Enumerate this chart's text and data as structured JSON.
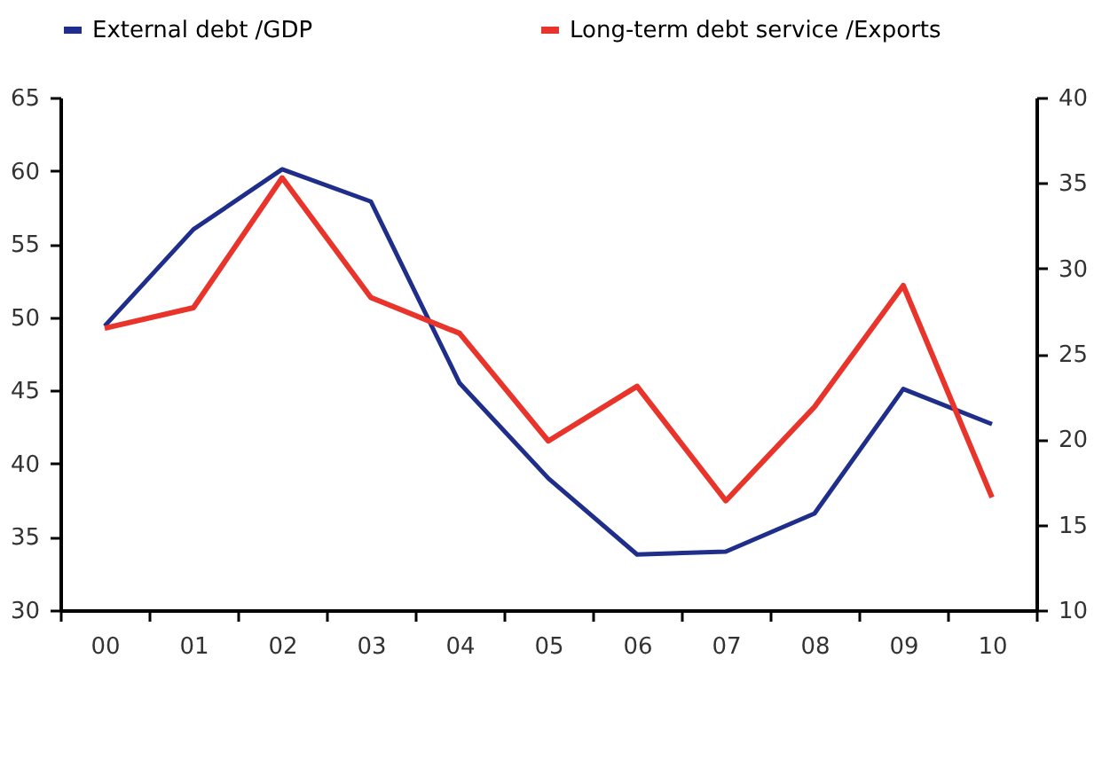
{
  "chart_data": {
    "type": "line",
    "categories": [
      "00",
      "01",
      "02",
      "03",
      "04",
      "05",
      "06",
      "07",
      "08",
      "09",
      "10"
    ],
    "series": [
      {
        "name": "External debt /GDP",
        "color": "#1f2e8a",
        "values": [
          49.4,
          56.0,
          60.1,
          57.9,
          45.5,
          39.0,
          33.8,
          34.0,
          36.6,
          45.1,
          42.7
        ]
      },
      {
        "name": "Long-term debt service /Exports",
        "color": "#e8342a",
        "axis": "y2",
        "values": [
          26.5,
          27.7,
          35.3,
          28.3,
          26.2,
          19.9,
          23.1,
          16.4,
          21.9,
          29.0,
          16.6
        ]
      }
    ],
    "ylim": [
      30,
      65
    ],
    "yticks": [
      30,
      35,
      40,
      45,
      50,
      55,
      60,
      65
    ],
    "y2lim": [
      10,
      40
    ],
    "y2ticks": [
      10,
      15,
      20,
      25,
      30,
      35,
      40
    ],
    "grid": false,
    "legend": "top",
    "line_style": "solid",
    "marker": "none"
  }
}
